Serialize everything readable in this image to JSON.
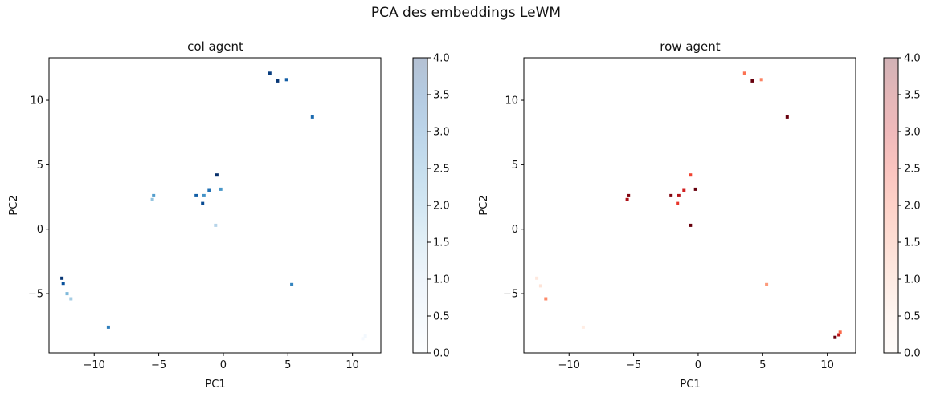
{
  "figure": {
    "suptitle": "PCA des embeddings LeWM"
  },
  "chart_data": [
    {
      "type": "scatter",
      "title": "col agent",
      "xlabel": "PC1",
      "ylabel": "PC2",
      "xlim": [
        -13.5,
        12.2
      ],
      "ylim": [
        -9.6,
        13.3
      ],
      "xticks": [
        -10,
        -5,
        0,
        5,
        10
      ],
      "yticks": [
        -5,
        0,
        5,
        10
      ],
      "colormap": "Blues",
      "colormap_stops": [
        "#f7fbff",
        "#deebf7",
        "#c6dbef",
        "#9ecae1",
        "#6baed6",
        "#4292c6",
        "#2171b5",
        "#08519c",
        "#08306b"
      ],
      "colorbar_alpha": 0.3,
      "colorbar_range": [
        0,
        4
      ],
      "colorbar_ticks": [
        0.0,
        0.5,
        1.0,
        1.5,
        2.0,
        2.5,
        3.0,
        3.5,
        4.0
      ],
      "points": [
        {
          "x": 3.6,
          "y": 12.1,
          "c": 3.8
        },
        {
          "x": 4.2,
          "y": 11.5,
          "c": 3.9
        },
        {
          "x": 4.9,
          "y": 11.6,
          "c": 3.3
        },
        {
          "x": 6.9,
          "y": 8.7,
          "c": 3.1
        },
        {
          "x": -0.5,
          "y": 4.2,
          "c": 4.0
        },
        {
          "x": -0.2,
          "y": 3.1,
          "c": 2.4
        },
        {
          "x": -1.1,
          "y": 3.0,
          "c": 3.0
        },
        {
          "x": -2.1,
          "y": 2.6,
          "c": 3.3
        },
        {
          "x": -1.5,
          "y": 2.6,
          "c": 2.5
        },
        {
          "x": -1.6,
          "y": 2.0,
          "c": 3.6
        },
        {
          "x": -5.4,
          "y": 2.6,
          "c": 2.3
        },
        {
          "x": -5.5,
          "y": 2.3,
          "c": 1.6
        },
        {
          "x": -0.6,
          "y": 0.3,
          "c": 1.2
        },
        {
          "x": 5.3,
          "y": -4.3,
          "c": 2.7
        },
        {
          "x": -12.5,
          "y": -3.8,
          "c": 3.9
        },
        {
          "x": -12.4,
          "y": -4.2,
          "c": 3.5
        },
        {
          "x": -12.1,
          "y": -5.0,
          "c": 1.8
        },
        {
          "x": -11.8,
          "y": -5.4,
          "c": 1.4
        },
        {
          "x": -8.9,
          "y": -7.6,
          "c": 2.8
        },
        {
          "x": 11.0,
          "y": -8.3,
          "c": 0.1
        },
        {
          "x": 10.8,
          "y": -8.5,
          "c": 0.05
        }
      ]
    },
    {
      "type": "scatter",
      "title": "row agent",
      "xlabel": "PC1",
      "ylabel": "PC2",
      "xlim": [
        -13.5,
        12.2
      ],
      "ylim": [
        -9.6,
        13.3
      ],
      "xticks": [
        -10,
        -5,
        0,
        5,
        10
      ],
      "yticks": [
        -5,
        0,
        5,
        10
      ],
      "colormap": "Reds",
      "colormap_stops": [
        "#fff5f0",
        "#fee0d2",
        "#fcbba1",
        "#fc9272",
        "#fb6a4a",
        "#ef3b2c",
        "#cb181d",
        "#a50f15",
        "#67000d"
      ],
      "colorbar_alpha": 0.3,
      "colorbar_range": [
        0,
        4
      ],
      "colorbar_ticks": [
        0.0,
        0.5,
        1.0,
        1.5,
        2.0,
        2.5,
        3.0,
        3.5,
        4.0
      ],
      "points": [
        {
          "x": 3.6,
          "y": 12.1,
          "c": 1.9
        },
        {
          "x": 4.9,
          "y": 11.6,
          "c": 1.7
        },
        {
          "x": 4.2,
          "y": 11.5,
          "c": 4.0
        },
        {
          "x": 6.9,
          "y": 8.7,
          "c": 4.0
        },
        {
          "x": -0.6,
          "y": 4.2,
          "c": 2.4
        },
        {
          "x": -0.2,
          "y": 3.1,
          "c": 4.0
        },
        {
          "x": -1.1,
          "y": 3.0,
          "c": 2.9
        },
        {
          "x": -2.1,
          "y": 2.6,
          "c": 3.8
        },
        {
          "x": -1.5,
          "y": 2.6,
          "c": 3.3
        },
        {
          "x": -1.6,
          "y": 2.0,
          "c": 2.6
        },
        {
          "x": -5.4,
          "y": 2.6,
          "c": 3.8
        },
        {
          "x": -5.5,
          "y": 2.3,
          "c": 3.4
        },
        {
          "x": -0.6,
          "y": 0.3,
          "c": 4.0
        },
        {
          "x": 5.3,
          "y": -4.3,
          "c": 1.4
        },
        {
          "x": -12.5,
          "y": -3.8,
          "c": 0.3
        },
        {
          "x": -12.2,
          "y": -4.4,
          "c": 0.4
        },
        {
          "x": -11.8,
          "y": -5.4,
          "c": 1.6
        },
        {
          "x": -8.9,
          "y": -7.6,
          "c": 0.2
        },
        {
          "x": 10.6,
          "y": -8.4,
          "c": 4.0
        },
        {
          "x": 10.9,
          "y": -8.2,
          "c": 3.2
        },
        {
          "x": 11.0,
          "y": -8.0,
          "c": 2.0
        }
      ]
    }
  ]
}
